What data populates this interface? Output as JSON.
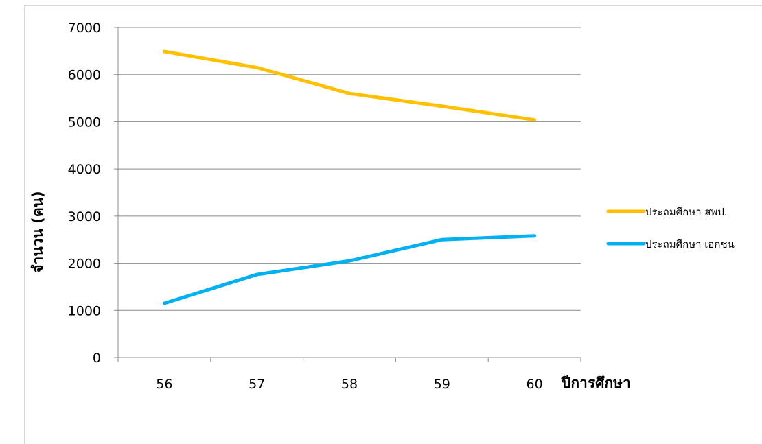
{
  "chart_data": {
    "type": "line",
    "title": "",
    "xlabel": "ปีการศึกษา",
    "ylabel": "จำนวน (คน)",
    "categories": [
      "56",
      "57",
      "58",
      "59",
      "60"
    ],
    "ylim": [
      0,
      7000
    ],
    "yticks": [
      "0",
      "1000",
      "2000",
      "3000",
      "4000",
      "5000",
      "6000",
      "7000"
    ],
    "grid": true,
    "legend_position": "right",
    "series": [
      {
        "name": "ประถมศึกษา สพป.",
        "color": "#FFC000",
        "values": [
          6490,
          6150,
          5600,
          5330,
          5040
        ]
      },
      {
        "name": "ประถมศึกษา เอกชน",
        "color": "#00B0F0",
        "values": [
          1150,
          1760,
          2050,
          2500,
          2580
        ]
      }
    ]
  }
}
